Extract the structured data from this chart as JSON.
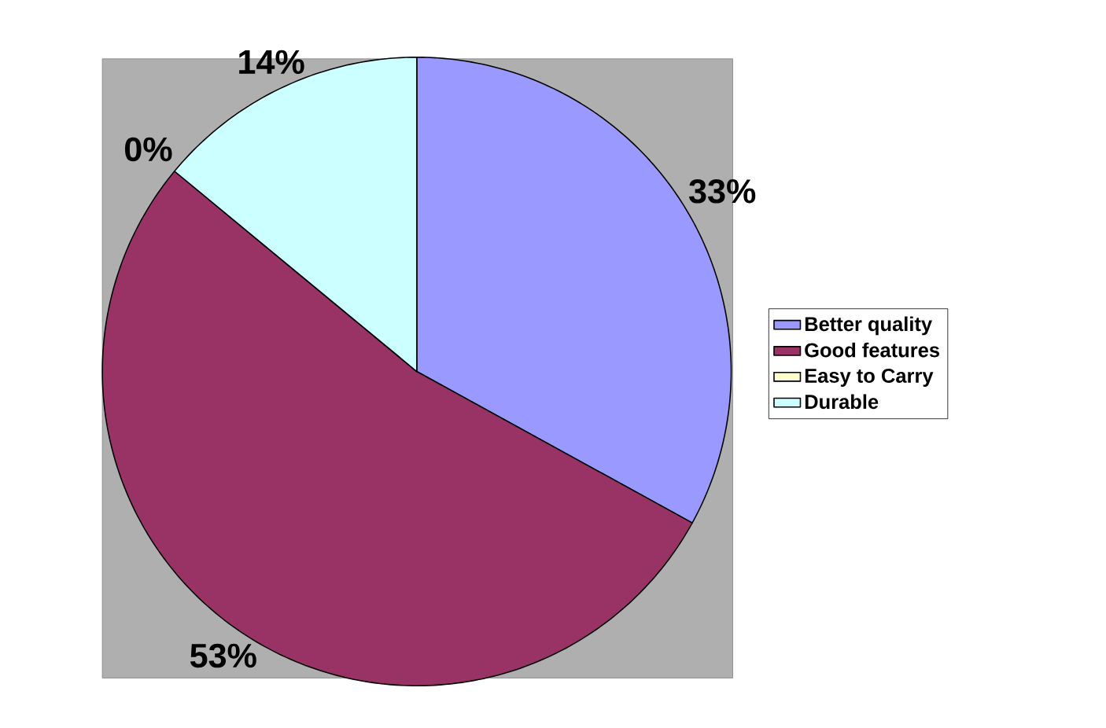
{
  "chart_data": {
    "type": "pie",
    "categories": [
      "Better quality",
      "Good features",
      "Easy to Carry",
      "Durable"
    ],
    "values": [
      33,
      53,
      0,
      14
    ],
    "colors": [
      "#9999ff",
      "#993366",
      "#ffffcc",
      "#ccffff"
    ],
    "value_labels": [
      "33%",
      "53%",
      "0%",
      "14%"
    ],
    "legend": "right"
  }
}
